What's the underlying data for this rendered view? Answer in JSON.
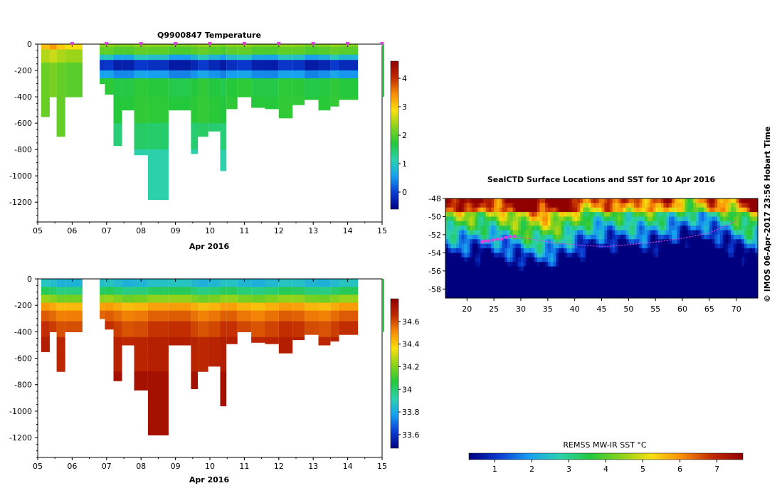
{
  "colors": {
    "temperature_scale": [
      "#00007f",
      "#0a3cd2",
      "#18a0f0",
      "#2cd1ae",
      "#24c83a",
      "#8ad21c",
      "#f8e010",
      "#f88c08",
      "#c02a00",
      "#900000"
    ],
    "salinity_scale": [
      "#00007f",
      "#0a3cd2",
      "#18a0f0",
      "#2cd1ae",
      "#24c83a",
      "#8ad21c",
      "#f8e010",
      "#f88c08",
      "#c02a00",
      "#900000"
    ],
    "sst_scale": [
      "#00007f",
      "#0a3cd2",
      "#18a0f0",
      "#2cd1ae",
      "#24c83a",
      "#8ad21c",
      "#f8e010",
      "#f88c08",
      "#c02a00",
      "#900000"
    ],
    "track": "#e040e0",
    "marker": "#e040e0"
  },
  "chart_data": [
    {
      "type": "heatmap",
      "title": "Q9900847  Temperature",
      "xlabel": "Apr 2016",
      "ylabel": "",
      "xlim": [
        5,
        15
      ],
      "ylim": [
        -1350,
        0
      ],
      "x_tick_labels": [
        "05",
        "06",
        "07",
        "08",
        "09",
        "10",
        "11",
        "12",
        "13",
        "14",
        "15"
      ],
      "y_ticks": [
        0,
        -200,
        -400,
        -600,
        -800,
        -1000,
        -1200
      ],
      "colorbar": {
        "min": -0.6,
        "max": 4.6,
        "ticks": [
          0,
          1,
          2,
          3,
          4
        ]
      },
      "profile_markers_x": [
        6,
        7,
        8,
        9,
        10,
        11,
        12,
        13,
        14,
        15
      ],
      "profiles": [
        {
          "x0": 5.1,
          "x1": 5.35,
          "depth": 550
        },
        {
          "x0": 5.35,
          "x1": 5.55,
          "depth": 400
        },
        {
          "x0": 5.55,
          "x1": 5.8,
          "depth": 700
        },
        {
          "x0": 5.8,
          "x1": 6.3,
          "depth": 400
        },
        {
          "x0": 6.8,
          "x1": 6.95,
          "depth": 300
        },
        {
          "x0": 6.95,
          "x1": 7.2,
          "depth": 380
        },
        {
          "x0": 7.2,
          "x1": 7.45,
          "depth": 770
        },
        {
          "x0": 7.45,
          "x1": 7.8,
          "depth": 500
        },
        {
          "x0": 7.8,
          "x1": 8.2,
          "depth": 840
        },
        {
          "x0": 8.2,
          "x1": 8.8,
          "depth": 1180
        },
        {
          "x0": 8.8,
          "x1": 9.45,
          "depth": 500
        },
        {
          "x0": 9.45,
          "x1": 9.65,
          "depth": 830
        },
        {
          "x0": 9.65,
          "x1": 9.95,
          "depth": 700
        },
        {
          "x0": 9.95,
          "x1": 10.3,
          "depth": 660
        },
        {
          "x0": 10.3,
          "x1": 10.48,
          "depth": 960
        },
        {
          "x0": 10.48,
          "x1": 10.8,
          "depth": 490
        },
        {
          "x0": 10.8,
          "x1": 11.2,
          "depth": 400
        },
        {
          "x0": 11.2,
          "x1": 11.6,
          "depth": 480
        },
        {
          "x0": 11.6,
          "x1": 12.0,
          "depth": 490
        },
        {
          "x0": 12.0,
          "x1": 12.4,
          "depth": 560
        },
        {
          "x0": 12.4,
          "x1": 12.75,
          "depth": 460
        },
        {
          "x0": 12.75,
          "x1": 13.15,
          "depth": 420
        },
        {
          "x0": 13.15,
          "x1": 13.5,
          "depth": 500
        },
        {
          "x0": 13.5,
          "x1": 13.75,
          "depth": 470
        },
        {
          "x0": 13.75,
          "x1": 14.3,
          "depth": 420
        }
      ]
    },
    {
      "type": "heatmap",
      "title": "",
      "xlabel": "Apr 2016",
      "ylabel": "",
      "xlim": [
        5,
        15
      ],
      "ylim": [
        -1350,
        0
      ],
      "x_tick_labels": [
        "05",
        "06",
        "07",
        "08",
        "09",
        "10",
        "11",
        "12",
        "13",
        "14",
        "15"
      ],
      "y_ticks": [
        0,
        -200,
        -400,
        -600,
        -800,
        -1000,
        -1200
      ],
      "colorbar": {
        "min": 33.48,
        "max": 34.8,
        "ticks": [
          33.6,
          33.8,
          34,
          34.2,
          34.4,
          34.6
        ],
        "tick_labels": [
          "33.6",
          "33.8",
          "34",
          "34.2",
          "34.4",
          "34.6"
        ]
      },
      "profiles": [
        {
          "x0": 5.1,
          "x1": 5.35,
          "depth": 550
        },
        {
          "x0": 5.35,
          "x1": 5.55,
          "depth": 400
        },
        {
          "x0": 5.55,
          "x1": 5.8,
          "depth": 700
        },
        {
          "x0": 5.8,
          "x1": 6.3,
          "depth": 400
        },
        {
          "x0": 6.8,
          "x1": 6.95,
          "depth": 300
        },
        {
          "x0": 6.95,
          "x1": 7.2,
          "depth": 380
        },
        {
          "x0": 7.2,
          "x1": 7.45,
          "depth": 770
        },
        {
          "x0": 7.45,
          "x1": 7.8,
          "depth": 500
        },
        {
          "x0": 7.8,
          "x1": 8.2,
          "depth": 840
        },
        {
          "x0": 8.2,
          "x1": 8.8,
          "depth": 1180
        },
        {
          "x0": 8.8,
          "x1": 9.45,
          "depth": 500
        },
        {
          "x0": 9.45,
          "x1": 9.65,
          "depth": 830
        },
        {
          "x0": 9.65,
          "x1": 9.95,
          "depth": 700
        },
        {
          "x0": 9.95,
          "x1": 10.3,
          "depth": 660
        },
        {
          "x0": 10.3,
          "x1": 10.48,
          "depth": 960
        },
        {
          "x0": 10.48,
          "x1": 10.8,
          "depth": 490
        },
        {
          "x0": 10.8,
          "x1": 11.2,
          "depth": 400
        },
        {
          "x0": 11.2,
          "x1": 11.6,
          "depth": 480
        },
        {
          "x0": 11.6,
          "x1": 12.0,
          "depth": 490
        },
        {
          "x0": 12.0,
          "x1": 12.4,
          "depth": 560
        },
        {
          "x0": 12.4,
          "x1": 12.75,
          "depth": 460
        },
        {
          "x0": 12.75,
          "x1": 13.15,
          "depth": 420
        },
        {
          "x0": 13.15,
          "x1": 13.5,
          "depth": 500
        },
        {
          "x0": 13.5,
          "x1": 13.75,
          "depth": 470
        },
        {
          "x0": 13.75,
          "x1": 14.3,
          "depth": 420
        }
      ]
    },
    {
      "type": "heatmap",
      "title": "SealCTD Surface Locations and SST for 10 Apr 2016",
      "xlabel": "",
      "ylabel": "",
      "xlim": [
        16,
        74
      ],
      "ylim": [
        -59,
        -48
      ],
      "x_ticks": [
        20,
        25,
        30,
        35,
        40,
        45,
        50,
        55,
        60,
        65,
        70
      ],
      "y_ticks": [
        -48,
        -50,
        -52,
        -54,
        -56,
        -58
      ],
      "track_lon": [
        23,
        24,
        25.5,
        27,
        28.5,
        30,
        34,
        38,
        42,
        46,
        50,
        55,
        60,
        65,
        70
      ],
      "track_lat": [
        -52.8,
        -52.6,
        -52.5,
        -52.3,
        -52.2,
        -52.3,
        -52.7,
        -53.0,
        -53.2,
        -53.3,
        -53.1,
        -52.8,
        -52.4,
        -51.8,
        -50.5
      ],
      "highlight_lon": [
        22.8,
        23.4,
        24.0,
        24.8,
        25.6,
        26.4,
        27.2,
        28.0,
        28.8
      ],
      "highlight_lat": [
        -52.8,
        -52.7,
        -52.7,
        -52.6,
        -52.5,
        -52.5,
        -52.3,
        -52.2,
        -52.2
      ],
      "colorbar": {
        "label": "REMSS MW-IR SST °C",
        "min": 0.3,
        "max": 7.7,
        "ticks": [
          1,
          2,
          3,
          4,
          5,
          6,
          7
        ]
      }
    }
  ],
  "credit": "© IMOS 06-Apr-2017 23:56 Hobart Time"
}
